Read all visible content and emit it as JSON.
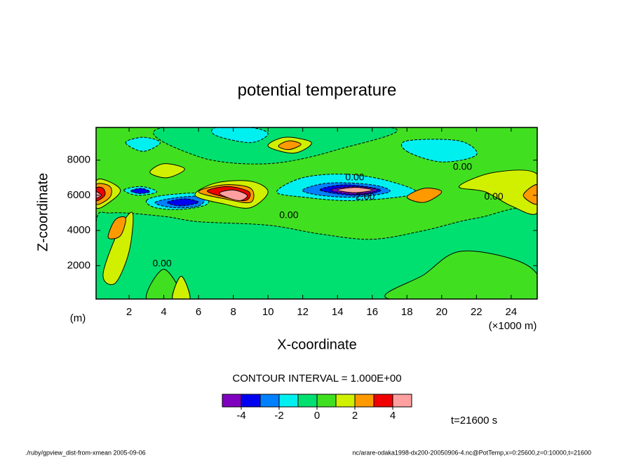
{
  "chart_data": {
    "type": "contour",
    "title": "potential temperature",
    "xlabel": "X-coordinate",
    "ylabel": "Z-coordinate",
    "x_unit_label": "(×1000 m)",
    "y_unit_label": "(m)",
    "xlim": [
      0.1,
      25.5
    ],
    "ylim": [
      100,
      9860
    ],
    "xticks": [
      2,
      4,
      6,
      8,
      10,
      12,
      14,
      16,
      18,
      20,
      22,
      24
    ],
    "yticks": [
      2000,
      4000,
      6000,
      8000
    ],
    "contour_interval_label": "CONTOUR INTERVAL = 1.000E+00",
    "levels": [
      -5,
      -4,
      -3,
      -2,
      -1,
      0,
      1,
      2,
      3,
      4,
      5
    ],
    "colors": [
      "#8000c0",
      "#0000f0",
      "#0080ff",
      "#00f0f0",
      "#00e070",
      "#40e020",
      "#d0f000",
      "#ff9900",
      "#f00000",
      "#ffa0a0"
    ],
    "colorbar_ticks": [
      -4,
      -2,
      0,
      2,
      4
    ],
    "regions": [
      {
        "level": 0,
        "points": [
          [
            0.1,
            100
          ],
          [
            25.5,
            100
          ],
          [
            25.5,
            9860
          ],
          [
            0.1,
            9860
          ]
        ]
      },
      {
        "level": -1,
        "points": [
          [
            0.1,
            4500
          ],
          [
            1,
            5000
          ],
          [
            4,
            4800
          ],
          [
            6,
            4500
          ],
          [
            10,
            4300
          ],
          [
            13,
            3800
          ],
          [
            16,
            3500
          ],
          [
            19,
            4000
          ],
          [
            22,
            4700
          ],
          [
            25.5,
            5000
          ],
          [
            25.5,
            100
          ],
          [
            0.1,
            100
          ]
        ]
      },
      {
        "level": 0,
        "points": [
          [
            17,
            100
          ],
          [
            19,
            1500
          ],
          [
            21,
            2800
          ],
          [
            24,
            2400
          ],
          [
            25.5,
            1500
          ],
          [
            25.5,
            100
          ]
        ]
      },
      {
        "level": 0,
        "points": [
          [
            3,
            100
          ],
          [
            4,
            1800
          ],
          [
            5,
            100
          ]
        ]
      },
      {
        "level": -1,
        "points": [
          [
            4,
            9860
          ],
          [
            6,
            8200
          ],
          [
            10,
            7800
          ],
          [
            14,
            8600
          ],
          [
            17,
            9860
          ]
        ]
      },
      {
        "level": -2,
        "points": [
          [
            7,
            9400
          ],
          [
            9,
            9000
          ],
          [
            10,
            9500
          ],
          [
            9,
            9860
          ],
          [
            7,
            9860
          ]
        ]
      },
      {
        "level": -2,
        "points": [
          [
            18,
            8500
          ],
          [
            20,
            7900
          ],
          [
            22,
            8300
          ],
          [
            21,
            9100
          ],
          [
            18,
            9100
          ]
        ]
      },
      {
        "level": -2,
        "points": [
          [
            1.8,
            9000
          ],
          [
            2.8,
            8500
          ],
          [
            3.8,
            9000
          ],
          [
            2.8,
            9300
          ]
        ]
      },
      {
        "level": -2,
        "points": [
          [
            10.5,
            6200
          ],
          [
            12,
            7000
          ],
          [
            14.5,
            7200
          ],
          [
            17,
            6800
          ],
          [
            18.5,
            6100
          ],
          [
            15,
            5700
          ],
          [
            12,
            5900
          ]
        ]
      },
      {
        "level": -3,
        "points": [
          [
            12,
            6300
          ],
          [
            13.5,
            6700
          ],
          [
            16,
            6600
          ],
          [
            17,
            6200
          ],
          [
            15,
            5900
          ],
          [
            13,
            6000
          ]
        ]
      },
      {
        "level": -4,
        "points": [
          [
            13,
            6300
          ],
          [
            14.5,
            6600
          ],
          [
            16.5,
            6300
          ],
          [
            15,
            6000
          ]
        ]
      },
      {
        "level": -5,
        "points": [
          [
            13.6,
            6300
          ],
          [
            15,
            6500
          ],
          [
            16.3,
            6300
          ],
          [
            15,
            6050
          ]
        ]
      },
      {
        "level": 4,
        "points": [
          [
            14,
            6300
          ],
          [
            15,
            6450
          ],
          [
            16,
            6300
          ],
          [
            15,
            6150
          ]
        ]
      },
      {
        "level": -2,
        "points": [
          [
            3,
            5700
          ],
          [
            4,
            6000
          ],
          [
            6.2,
            6100
          ],
          [
            6.5,
            5500
          ],
          [
            5,
            5200
          ],
          [
            3.5,
            5300
          ]
        ]
      },
      {
        "level": -3,
        "points": [
          [
            3.5,
            5600
          ],
          [
            5,
            5900
          ],
          [
            6.3,
            5900
          ],
          [
            6,
            5400
          ],
          [
            4.5,
            5300
          ]
        ]
      },
      {
        "level": -4,
        "points": [
          [
            4.2,
            5600
          ],
          [
            5.2,
            5800
          ],
          [
            6,
            5600
          ],
          [
            5,
            5400
          ]
        ]
      },
      {
        "level": -2,
        "points": [
          [
            1.7,
            6300
          ],
          [
            2.7,
            6500
          ],
          [
            3.6,
            6200
          ],
          [
            2.5,
            6000
          ]
        ]
      },
      {
        "level": -4,
        "points": [
          [
            2.1,
            6250
          ],
          [
            2.7,
            6400
          ],
          [
            3.2,
            6200
          ],
          [
            2.6,
            6100
          ]
        ]
      },
      {
        "level": 1,
        "points": [
          [
            5.8,
            6000
          ],
          [
            7,
            6700
          ],
          [
            9,
            6800
          ],
          [
            10,
            6200
          ],
          [
            9,
            5300
          ],
          [
            7.5,
            5500
          ]
        ]
      },
      {
        "level": 2,
        "points": [
          [
            6,
            6200
          ],
          [
            7.5,
            6600
          ],
          [
            9,
            6400
          ],
          [
            9,
            5600
          ],
          [
            7.5,
            5800
          ]
        ]
      },
      {
        "level": 3,
        "points": [
          [
            6.5,
            6250
          ],
          [
            7.7,
            6500
          ],
          [
            8.9,
            6200
          ],
          [
            8.7,
            5700
          ],
          [
            7.5,
            5900
          ]
        ]
      },
      {
        "level": 4,
        "points": [
          [
            7.2,
            6100
          ],
          [
            8,
            6300
          ],
          [
            8.8,
            6000
          ],
          [
            8.3,
            5700
          ]
        ]
      },
      {
        "level": 1,
        "points": [
          [
            0.1,
            5300
          ],
          [
            1,
            5700
          ],
          [
            1.5,
            6300
          ],
          [
            0.8,
            6800
          ],
          [
            0.1,
            6800
          ]
        ]
      },
      {
        "level": 2,
        "points": [
          [
            0.1,
            5500
          ],
          [
            0.9,
            5900
          ],
          [
            0.9,
            6500
          ],
          [
            0.1,
            6600
          ]
        ]
      },
      {
        "level": 3,
        "points": [
          [
            0.1,
            5700
          ],
          [
            0.6,
            6000
          ],
          [
            0.5,
            6400
          ],
          [
            0.1,
            6400
          ]
        ]
      },
      {
        "level": 4,
        "points": [
          [
            0.1,
            5850
          ],
          [
            0.4,
            6000
          ],
          [
            0.1,
            6200
          ]
        ]
      },
      {
        "level": 1,
        "points": [
          [
            21,
            6500
          ],
          [
            23,
            7300
          ],
          [
            25.5,
            7200
          ],
          [
            25.5,
            5000
          ],
          [
            24,
            5400
          ],
          [
            22.5,
            6200
          ]
        ]
      },
      {
        "level": 2,
        "points": [
          [
            24.7,
            6000
          ],
          [
            25.5,
            6600
          ],
          [
            25.5,
            5500
          ]
        ]
      },
      {
        "level": 2,
        "points": [
          [
            18,
            5900
          ],
          [
            19,
            6400
          ],
          [
            20,
            6200
          ],
          [
            19,
            5600
          ]
        ]
      },
      {
        "level": 1,
        "points": [
          [
            10,
            8800
          ],
          [
            11,
            9300
          ],
          [
            12.5,
            9000
          ],
          [
            11.5,
            8400
          ]
        ]
      },
      {
        "level": 2,
        "points": [
          [
            10.6,
            8800
          ],
          [
            11.2,
            9100
          ],
          [
            11.9,
            8900
          ],
          [
            11.2,
            8600
          ]
        ]
      },
      {
        "level": 1,
        "points": [
          [
            3.2,
            7300
          ],
          [
            4,
            7800
          ],
          [
            5.2,
            7500
          ],
          [
            4.2,
            7000
          ]
        ]
      },
      {
        "level": 1,
        "points": [
          [
            0.5,
            1500
          ],
          [
            1.4,
            4000
          ],
          [
            2.2,
            5000
          ],
          [
            2,
            2800
          ],
          [
            1.2,
            1000
          ]
        ]
      },
      {
        "level": 2,
        "points": [
          [
            0.8,
            3600
          ],
          [
            1.2,
            4600
          ],
          [
            1.8,
            4700
          ],
          [
            1.5,
            3700
          ]
        ]
      },
      {
        "level": 1,
        "points": [
          [
            4.5,
            100
          ],
          [
            5,
            1400
          ],
          [
            5.5,
            100
          ]
        ]
      }
    ],
    "contour_labels": [
      {
        "x": 15,
        "z": 7000,
        "value": 0,
        "label": "0.00"
      },
      {
        "x": 21.2,
        "z": 7600,
        "value": 0,
        "label": "0.00"
      },
      {
        "x": 23,
        "z": 5900,
        "value": 0,
        "label": "0.00"
      },
      {
        "x": 11.2,
        "z": 4850,
        "value": 0,
        "label": "0.00"
      },
      {
        "x": 3.9,
        "z": 2100,
        "value": 0,
        "label": "0.00"
      },
      {
        "x": 15.5,
        "z": 5900,
        "value": -2,
        "label": "-2.00"
      }
    ],
    "time_label": "t=21600 s",
    "footer_left": "./ruby/gpview_dist-from-xmean   2005-09-06",
    "footer_right": "nc/arare-odaka1998-dx200-20050906-4.nc@PotTemp,x=0:25600,z=0:10000,t=21600"
  }
}
